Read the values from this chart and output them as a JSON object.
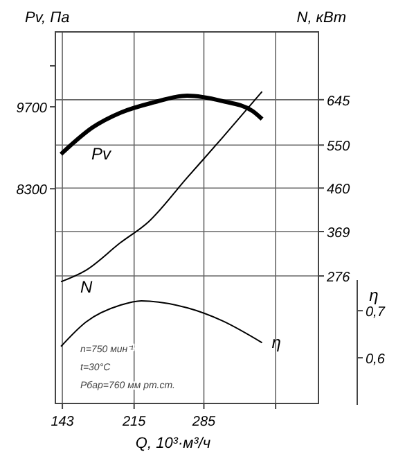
{
  "chart_data": {
    "type": "line",
    "xlabel": "Q, 10³·м³/ч",
    "ylabel": "Pv, Па",
    "y2label": "N, кВт",
    "y3label": "η",
    "annotations": [
      "n=750 мин⁻¹",
      "t=30°C",
      "Pбар=760 мм рт.ст."
    ],
    "xlim": [
      136,
      400
    ],
    "xticks": [
      143,
      215,
      285,
      {
        "value": 357,
        "label": null
      }
    ],
    "ylim": [
      4630,
      10980
    ],
    "yticks": [
      {
        "value": 10400,
        "label": null
      },
      9700,
      8300
    ],
    "y2lim": [
      9,
      787
    ],
    "y2ticks": [
      276,
      369,
      460,
      550,
      645
    ],
    "y3lim": [
      0.5,
      0.765
    ],
    "y3ticks": [
      {
        "value": 0.6,
        "label": "0,6"
      },
      {
        "value": 0.7,
        "label": "0,7"
      }
    ],
    "grid": true,
    "series": [
      {
        "name": "Pv",
        "color": "#000000",
        "axis": "y",
        "x": [
          141.6,
          173.6,
          201.5,
          233.5,
          268.3,
          303,
          333.7,
          343.4
        ],
        "values": [
          8890,
          9350,
          9600,
          9770,
          9890,
          9800,
          9630,
          9490
        ]
      },
      {
        "name": "N",
        "color": "#000000",
        "axis": "y2",
        "x": [
          141.6,
          166.7,
          201.5,
          229.3,
          268.3,
          303,
          343.4
        ],
        "values": [
          264,
          288,
          346,
          389,
          482,
          564,
          662
        ]
      },
      {
        "name": "η",
        "color": "#000000",
        "axis": "y3",
        "x": [
          141.6,
          166.7,
          201.5,
          222.3,
          268.3,
          303,
          343.4
        ],
        "values": [
          0.624,
          0.676,
          0.712,
          0.721,
          0.706,
          0.679,
          0.632
        ]
      }
    ]
  }
}
